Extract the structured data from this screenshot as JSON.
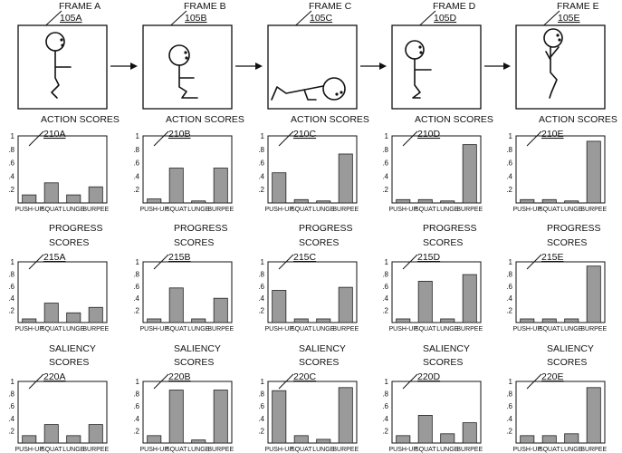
{
  "figure": {
    "frames": [
      {
        "label": "FRAME A",
        "ref": "105A",
        "pose": "standing"
      },
      {
        "label": "FRAME B",
        "ref": "105B",
        "pose": "squat"
      },
      {
        "label": "FRAME C",
        "ref": "105C",
        "pose": "push-up"
      },
      {
        "label": "FRAME D",
        "ref": "105D",
        "pose": "crouch"
      },
      {
        "label": "FRAME E",
        "ref": "105E",
        "pose": "jump"
      }
    ],
    "arrow_count": 4,
    "y_tick_labels": [
      ".2",
      ".4",
      ".6",
      ".8",
      "1"
    ],
    "categories": [
      "PUSH-UP",
      "SQUAT",
      "LUNGE",
      "BURPEE"
    ],
    "bar_color": "#9a9a9a"
  },
  "chart_data": {
    "type": "bar",
    "ylim": [
      0,
      1
    ],
    "categories": [
      "PUSH-UP",
      "SQUAT",
      "LUNGE",
      "BURPEE"
    ],
    "rows": [
      {
        "title_lines": [
          "ACTION SCORES"
        ],
        "charts": [
          {
            "ref": "210A",
            "values": [
              0.12,
              0.3,
              0.12,
              0.24
            ]
          },
          {
            "ref": "210B",
            "values": [
              0.06,
              0.52,
              0.03,
              0.52
            ]
          },
          {
            "ref": "210C",
            "values": [
              0.45,
              0.05,
              0.03,
              0.73
            ]
          },
          {
            "ref": "210D",
            "values": [
              0.05,
              0.05,
              0.03,
              0.87
            ]
          },
          {
            "ref": "210E",
            "values": [
              0.05,
              0.05,
              0.03,
              0.92
            ]
          }
        ]
      },
      {
        "title_lines": [
          "PROGRESS",
          "SCORES"
        ],
        "charts": [
          {
            "ref": "215A",
            "values": [
              0.06,
              0.32,
              0.16,
              0.25
            ]
          },
          {
            "ref": "215B",
            "values": [
              0.06,
              0.57,
              0.06,
              0.4
            ]
          },
          {
            "ref": "215C",
            "values": [
              0.53,
              0.06,
              0.06,
              0.58
            ]
          },
          {
            "ref": "215D",
            "values": [
              0.06,
              0.68,
              0.06,
              0.79
            ]
          },
          {
            "ref": "215E",
            "values": [
              0.06,
              0.06,
              0.06,
              0.93
            ]
          }
        ]
      },
      {
        "title_lines": [
          "SALIENCY",
          "SCORES"
        ],
        "charts": [
          {
            "ref": "220A",
            "values": [
              0.12,
              0.3,
              0.12,
              0.3
            ]
          },
          {
            "ref": "220B",
            "values": [
              0.12,
              0.86,
              0.05,
              0.86
            ]
          },
          {
            "ref": "220C",
            "values": [
              0.85,
              0.12,
              0.06,
              0.9
            ]
          },
          {
            "ref": "220D",
            "values": [
              0.12,
              0.45,
              0.15,
              0.33
            ]
          },
          {
            "ref": "220E",
            "values": [
              0.12,
              0.12,
              0.15,
              0.9
            ]
          }
        ]
      }
    ]
  }
}
